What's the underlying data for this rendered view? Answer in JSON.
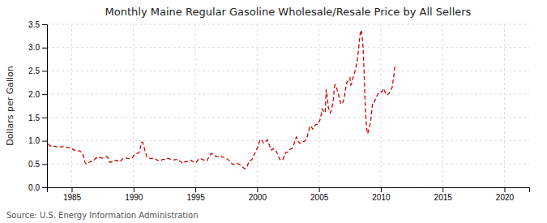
{
  "chart_data": {
    "type": "line",
    "title": "Monthly Maine Regular Gasoline Wholesale/Resale Price by All Sellers",
    "ylabel": "Dollars per Gallon",
    "annotations": [
      "Source: U.S. Energy Information Administration"
    ],
    "color": "#cc0000",
    "line_style": "dashed",
    "grid": true,
    "xlim": [
      1983,
      2022
    ],
    "ylim": [
      0.0,
      3.5
    ],
    "xticks": [
      1985,
      1990,
      1995,
      2000,
      2005,
      2010,
      2015,
      2020
    ],
    "yticks": [
      {
        "value": 0.0,
        "label": "0.0"
      },
      0.5,
      {
        "value": 1.0,
        "label": "1.0"
      },
      1.5,
      {
        "value": 2.0,
        "label": "2.0"
      },
      2.5,
      {
        "value": 3.0,
        "label": "3.0"
      },
      3.5
    ],
    "x": [
      1983.08,
      1983.17,
      1983.25,
      1983.33,
      1983.42,
      1983.5,
      1983.58,
      1983.67,
      1983.75,
      1983.83,
      1983.92,
      1984.0,
      1984.08,
      1984.17,
      1984.25,
      1984.33,
      1984.42,
      1984.5,
      1984.58,
      1984.67,
      1984.75,
      1984.83,
      1984.92,
      1985.0,
      1985.08,
      1985.17,
      1985.25,
      1985.33,
      1985.42,
      1985.5,
      1985.58,
      1985.67,
      1985.75,
      1985.83,
      1985.92,
      1986.0,
      1986.08,
      1986.17,
      1986.25,
      1986.33,
      1986.42,
      1986.5,
      1986.58,
      1986.67,
      1986.75,
      1986.83,
      1986.92,
      1987.0,
      1987.08,
      1987.17,
      1987.25,
      1987.33,
      1987.42,
      1987.5,
      1987.58,
      1987.67,
      1987.75,
      1987.83,
      1987.92,
      1988.0,
      1988.08,
      1988.17,
      1988.25,
      1988.33,
      1988.42,
      1988.5,
      1988.58,
      1988.67,
      1988.75,
      1988.83,
      1988.92,
      1989.0,
      1989.08,
      1989.17,
      1989.25,
      1989.33,
      1989.42,
      1989.5,
      1989.58,
      1989.67,
      1989.75,
      1989.83,
      1989.92,
      1990.0,
      1990.08,
      1990.17,
      1990.25,
      1990.33,
      1990.42,
      1990.5,
      1990.58,
      1990.67,
      1990.75,
      1990.83,
      1990.92,
      1991.0,
      1991.08,
      1991.17,
      1991.25,
      1991.33,
      1991.42,
      1991.5,
      1991.58,
      1991.67,
      1991.75,
      1991.83,
      1991.92,
      1992.0,
      1992.08,
      1992.17,
      1992.25,
      1992.33,
      1992.42,
      1992.5,
      1992.58,
      1992.67,
      1992.75,
      1992.83,
      1992.92,
      1993.0,
      1993.08,
      1993.17,
      1993.25,
      1993.33,
      1993.42,
      1993.5,
      1993.58,
      1993.67,
      1993.75,
      1993.83,
      1993.92,
      1994.0,
      1994.08,
      1994.17,
      1994.25,
      1994.33,
      1994.42,
      1994.5,
      1994.58,
      1994.67,
      1994.75,
      1994.83,
      1994.92,
      1995.0,
      1995.08,
      1995.17,
      1995.25,
      1995.33,
      1995.42,
      1995.5,
      1995.58,
      1995.67,
      1995.75,
      1995.83,
      1995.92,
      1996.0,
      1996.08,
      1996.17,
      1996.25,
      1996.33,
      1996.42,
      1996.5,
      1996.58,
      1996.67,
      1996.75,
      1996.83,
      1996.92,
      1997.0,
      1997.08,
      1997.17,
      1997.25,
      1997.33,
      1997.42,
      1997.5,
      1997.58,
      1997.67,
      1997.75,
      1997.83,
      1997.92,
      1998.0,
      1998.08,
      1998.17,
      1998.25,
      1998.33,
      1998.42,
      1998.5,
      1998.58,
      1998.67,
      1998.75,
      1998.83,
      1998.92,
      1999.0,
      1999.08,
      1999.17,
      1999.25,
      1999.33,
      1999.42,
      1999.5,
      1999.58,
      1999.67,
      1999.75,
      1999.83,
      1999.92,
      2000.0,
      2000.08,
      2000.17,
      2000.25,
      2000.33,
      2000.42,
      2000.5,
      2000.58,
      2000.67,
      2000.75,
      2000.83,
      2000.92,
      2001.0,
      2001.08,
      2001.17,
      2001.25,
      2001.33,
      2001.42,
      2001.5,
      2001.58,
      2001.67,
      2001.75,
      2001.83,
      2001.92,
      2002.0,
      2002.08,
      2002.17,
      2002.25,
      2002.33,
      2002.42,
      2002.5,
      2002.58,
      2002.67,
      2002.75,
      2002.83,
      2002.92,
      2003.0,
      2003.08,
      2003.17,
      2003.25,
      2003.33,
      2003.42,
      2003.5,
      2003.58,
      2003.67,
      2003.75,
      2003.83,
      2003.92,
      2004.0,
      2004.08,
      2004.17,
      2004.25,
      2004.33,
      2004.42,
      2004.5,
      2004.58,
      2004.67,
      2004.75,
      2004.83,
      2004.92,
      2005.0,
      2005.08,
      2005.17,
      2005.25,
      2005.33,
      2005.42,
      2005.5,
      2005.58,
      2005.67,
      2005.75,
      2005.83,
      2005.92,
      2006.0,
      2006.08,
      2006.17,
      2006.25,
      2006.33,
      2006.42,
      2006.5,
      2006.58,
      2006.67,
      2006.75,
      2006.83,
      2006.92,
      2007.0,
      2007.08,
      2007.17,
      2007.25,
      2007.33,
      2007.42,
      2007.5,
      2007.58,
      2007.67,
      2007.75,
      2007.83,
      2007.92,
      2008.0,
      2008.08,
      2008.17,
      2008.25,
      2008.33,
      2008.42,
      2008.5,
      2008.58,
      2008.67,
      2008.75,
      2008.83,
      2008.92,
      2009.0,
      2009.08,
      2009.17,
      2009.25,
      2009.33,
      2009.42,
      2009.5,
      2009.58,
      2009.67,
      2009.75,
      2009.83,
      2009.92,
      2010.0,
      2010.08,
      2010.17,
      2010.25,
      2010.33,
      2010.42,
      2010.5,
      2010.58,
      2010.67,
      2010.75,
      2010.83,
      2010.92,
      2011.0,
      2011.08,
      2011.17
    ],
    "values": [
      0.93,
      0.91,
      0.89,
      0.88,
      0.87,
      0.87,
      0.88,
      0.88,
      0.87,
      0.87,
      0.86,
      0.87,
      0.87,
      0.87,
      0.87,
      0.88,
      0.88,
      0.87,
      0.86,
      0.86,
      0.86,
      0.85,
      0.84,
      0.83,
      0.82,
      0.8,
      0.8,
      0.8,
      0.79,
      0.78,
      0.78,
      0.78,
      0.76,
      0.74,
      0.7,
      0.6,
      0.53,
      0.5,
      0.51,
      0.53,
      0.54,
      0.55,
      0.56,
      0.57,
      0.58,
      0.59,
      0.62,
      0.63,
      0.64,
      0.65,
      0.64,
      0.64,
      0.63,
      0.63,
      0.64,
      0.65,
      0.65,
      0.66,
      0.64,
      0.57,
      0.54,
      0.54,
      0.55,
      0.57,
      0.58,
      0.58,
      0.57,
      0.57,
      0.57,
      0.56,
      0.55,
      0.58,
      0.6,
      0.62,
      0.63,
      0.63,
      0.63,
      0.62,
      0.62,
      0.62,
      0.62,
      0.63,
      0.64,
      0.68,
      0.7,
      0.72,
      0.73,
      0.73,
      0.74,
      0.78,
      0.88,
      0.97,
      0.96,
      0.88,
      0.79,
      0.72,
      0.65,
      0.63,
      0.63,
      0.62,
      0.62,
      0.62,
      0.63,
      0.62,
      0.61,
      0.6,
      0.58,
      0.58,
      0.58,
      0.57,
      0.58,
      0.6,
      0.6,
      0.6,
      0.61,
      0.62,
      0.62,
      0.62,
      0.61,
      0.6,
      0.6,
      0.59,
      0.59,
      0.59,
      0.6,
      0.6,
      0.6,
      0.59,
      0.56,
      0.55,
      0.52,
      0.52,
      0.54,
      0.55,
      0.55,
      0.55,
      0.56,
      0.57,
      0.58,
      0.58,
      0.56,
      0.55,
      0.54,
      0.54,
      0.54,
      0.57,
      0.6,
      0.62,
      0.62,
      0.61,
      0.6,
      0.59,
      0.57,
      0.57,
      0.57,
      0.6,
      0.65,
      0.68,
      0.72,
      0.72,
      0.71,
      0.68,
      0.67,
      0.67,
      0.66,
      0.66,
      0.67,
      0.68,
      0.67,
      0.65,
      0.65,
      0.64,
      0.63,
      0.62,
      0.61,
      0.59,
      0.57,
      0.56,
      0.52,
      0.5,
      0.49,
      0.49,
      0.5,
      0.51,
      0.51,
      0.5,
      0.49,
      0.47,
      0.45,
      0.43,
      0.41,
      0.4,
      0.42,
      0.44,
      0.49,
      0.55,
      0.58,
      0.58,
      0.6,
      0.65,
      0.7,
      0.74,
      0.78,
      0.85,
      0.87,
      0.98,
      1.02,
      1.03,
      1.0,
      0.95,
      0.95,
      0.98,
      1.0,
      1.02,
      0.95,
      0.9,
      0.82,
      0.8,
      0.82,
      0.83,
      0.82,
      0.8,
      0.75,
      0.7,
      0.65,
      0.6,
      0.58,
      0.58,
      0.6,
      0.65,
      0.72,
      0.75,
      0.75,
      0.76,
      0.8,
      0.82,
      0.83,
      0.84,
      0.87,
      0.95,
      1.02,
      1.08,
      1.05,
      0.98,
      0.95,
      0.95,
      0.97,
      0.98,
      0.98,
      0.99,
      1.02,
      1.05,
      1.12,
      1.2,
      1.3,
      1.32,
      1.28,
      1.25,
      1.28,
      1.33,
      1.35,
      1.35,
      1.35,
      1.4,
      1.45,
      1.55,
      1.68,
      1.65,
      1.6,
      1.62,
      2.1,
      1.95,
      1.72,
      1.65,
      1.6,
      1.65,
      1.75,
      1.9,
      2.18,
      2.2,
      2.15,
      2.05,
      1.98,
      1.9,
      1.8,
      1.78,
      1.82,
      1.88,
      1.98,
      2.15,
      2.25,
      2.28,
      2.3,
      2.35,
      2.2,
      2.25,
      2.35,
      2.42,
      2.5,
      2.6,
      2.7,
      2.9,
      3.1,
      3.3,
      3.38,
      3.2,
      2.95,
      2.3,
      1.7,
      1.35,
      1.15,
      1.2,
      1.3,
      1.4,
      1.6,
      1.8,
      1.8,
      1.85,
      1.9,
      1.95,
      2.0,
      2.02,
      2.05,
      2.05,
      2.05,
      2.1,
      2.12,
      2.05,
      2.0,
      1.98,
      2.0,
      2.02,
      2.05,
      2.1,
      2.15,
      2.3,
      2.45,
      2.65
    ]
  }
}
